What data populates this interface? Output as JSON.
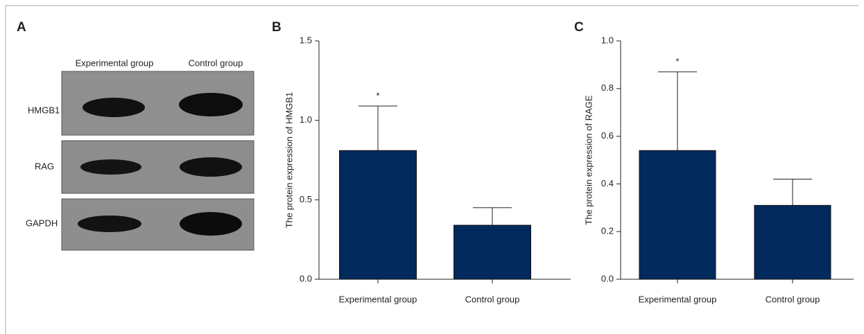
{
  "blot": {
    "panel_label": "A",
    "columns": [
      "Experimental group",
      "Control group"
    ],
    "rows": [
      "HMGB1",
      "RAG",
      "GAPDH"
    ]
  },
  "chart_data": [
    {
      "type": "bar",
      "panel_label": "B",
      "y_label": "The protein expression of HMGB1",
      "categories": [
        "Experimental group",
        "Control group"
      ],
      "values": [
        0.81,
        0.34
      ],
      "errors": [
        0.28,
        0.11
      ],
      "annotations": [
        "*",
        null
      ],
      "color": "#022a5c",
      "ylim": [
        0,
        1.5
      ],
      "yticks": [
        {
          "value": 0,
          "label": "0.0"
        },
        0.5,
        {
          "value": 1,
          "label": "1.0"
        },
        1.5
      ]
    },
    {
      "type": "bar",
      "panel_label": "C",
      "y_label": "The protein expression of RAGE",
      "categories": [
        "Experimental group",
        "Control group"
      ],
      "values": [
        0.54,
        0.31
      ],
      "errors": [
        0.33,
        0.11
      ],
      "annotations": [
        "*",
        null
      ],
      "color": "#022a5c",
      "ylim": [
        0,
        1
      ],
      "yticks": [
        {
          "value": 0,
          "label": "0.0"
        },
        0.2,
        0.4,
        0.6,
        0.8,
        {
          "value": 1,
          "label": "1.0"
        }
      ]
    }
  ]
}
